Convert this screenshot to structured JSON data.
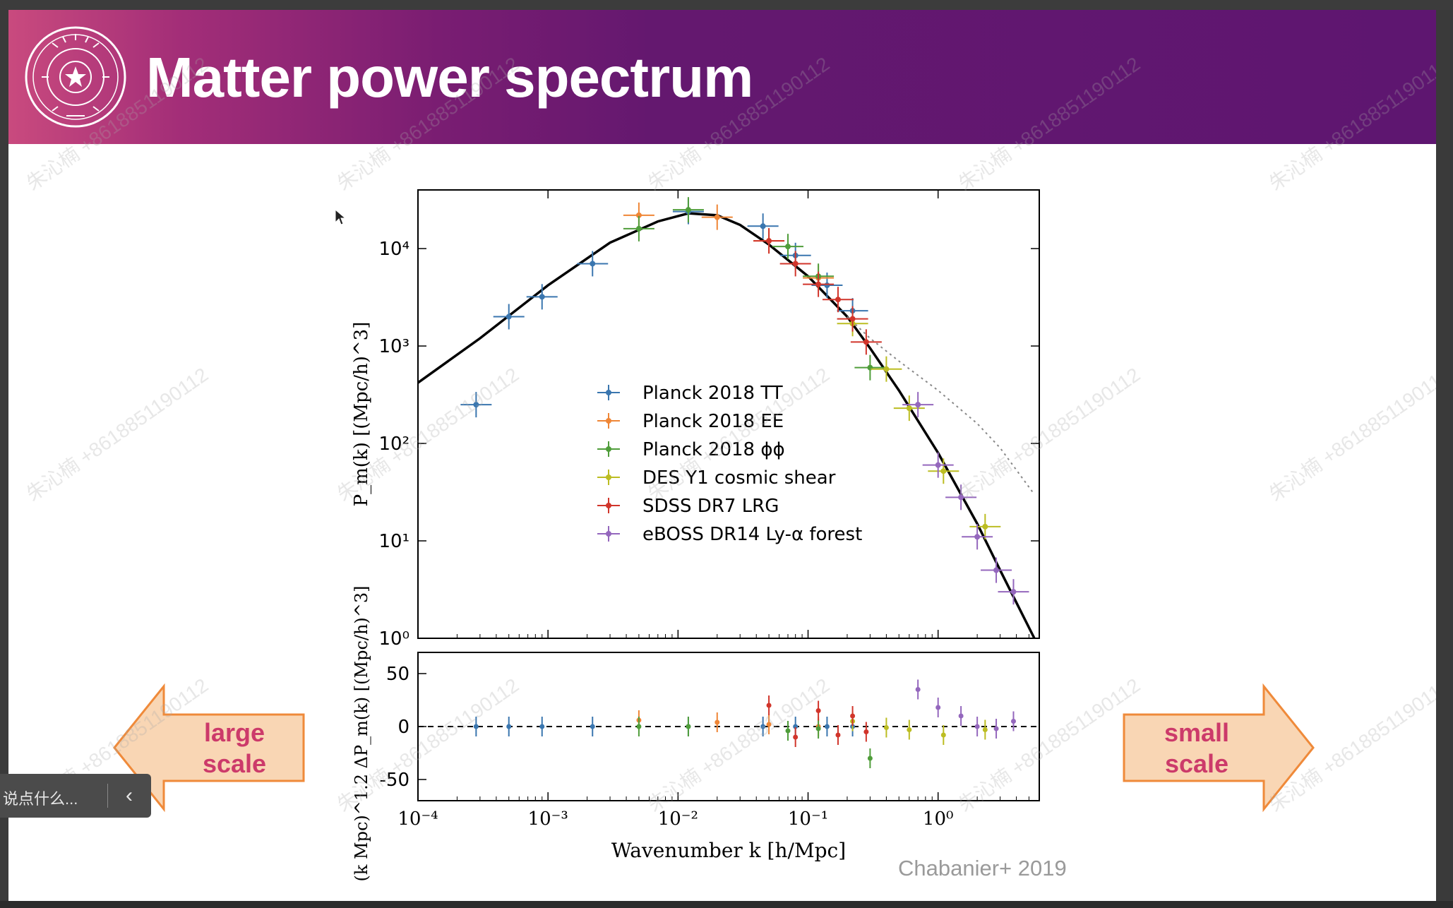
{
  "slide": {
    "title": "Matter power spectrum",
    "credit": "Chabanier+ 2019",
    "left_arrow": {
      "line1": "large",
      "line2": "scale"
    },
    "right_arrow": {
      "line1": "small",
      "line2": "scale"
    },
    "watermark_text": "朱沁楠 +8618851190112",
    "colors": {
      "header_start": "#c94a7e",
      "header_end": "#5e1670",
      "arrow_fill": "#f9d6b4",
      "arrow_stroke": "#ef8a3a",
      "arrow_text": "#cc3a6a"
    }
  },
  "comment_bar": {
    "placeholder": "说点什么...",
    "collapse_icon": "chevron-left-icon"
  },
  "chart_data": {
    "type": "scatter",
    "xlabel": "Wavenumber k [h/Mpc]",
    "ylabel_top": "P_m(k) [(Mpc/h)^3]",
    "ylabel_bottom": "(k Mpc)^1.2 ΔP_m(k) [(Mpc/h)^3]",
    "x_scale": "log",
    "xlim": [
      0.0001,
      6
    ],
    "top_panel": {
      "y_scale": "log",
      "ylim": [
        1,
        40000
      ],
      "yticks": [
        1,
        10,
        100,
        1000,
        10000
      ],
      "ytick_labels": [
        "10^0",
        "10^1",
        "10^2",
        "10^3",
        "10^4"
      ],
      "model_curve": {
        "x": [
          0.0001,
          0.0003,
          0.001,
          0.003,
          0.007,
          0.012,
          0.02,
          0.03,
          0.05,
          0.1,
          0.2,
          0.3,
          0.5,
          1,
          2,
          3,
          5.5
        ],
        "y": [
          420,
          1200,
          4200,
          11500,
          19000,
          23000,
          22000,
          17500,
          11000,
          5200,
          2000,
          950,
          350,
          80,
          15,
          5,
          1
        ]
      },
      "nonlinear_curve": {
        "x": [
          0.2,
          0.3,
          0.5,
          1,
          2,
          3,
          5.5
        ],
        "y": [
          2000,
          1200,
          700,
          350,
          160,
          90,
          30
        ]
      }
    },
    "bottom_panel": {
      "y_scale": "linear",
      "ylim": [
        -70,
        70
      ],
      "yticks": [
        -50,
        0,
        50
      ]
    },
    "xticks": [
      0.0001,
      0.001,
      0.01,
      0.1,
      1
    ],
    "xtick_labels": [
      "10^-4",
      "10^-3",
      "10^-2",
      "10^-1",
      "10^0"
    ],
    "legend_position": "lower-center",
    "series": [
      {
        "name": "Planck 2018 TT",
        "color": "#3a76af",
        "points": [
          {
            "x": 0.00028,
            "y": 250,
            "r": 0
          },
          {
            "x": 0.0005,
            "y": 2000,
            "r": 0
          },
          {
            "x": 0.0009,
            "y": 3200,
            "r": 0
          },
          {
            "x": 0.0022,
            "y": 7000,
            "r": 0
          },
          {
            "x": 0.012,
            "y": 24000,
            "r": 0
          },
          {
            "x": 0.045,
            "y": 17000,
            "r": 0
          },
          {
            "x": 0.08,
            "y": 8500,
            "r": 0
          },
          {
            "x": 0.14,
            "y": 4200,
            "r": 0
          },
          {
            "x": 0.22,
            "y": 2300,
            "r": 0
          }
        ]
      },
      {
        "name": "Planck 2018 EE",
        "color": "#ef8636",
        "points": [
          {
            "x": 0.005,
            "y": 22000,
            "r": 6
          },
          {
            "x": 0.02,
            "y": 21000,
            "r": 4
          },
          {
            "x": 0.05,
            "y": 12000,
            "r": 2
          },
          {
            "x": 0.12,
            "y": 5000,
            "r": 0
          }
        ]
      },
      {
        "name": "Planck 2018 ϕϕ",
        "color": "#4f9d3a",
        "points": [
          {
            "x": 0.005,
            "y": 16000,
            "r": 0
          },
          {
            "x": 0.012,
            "y": 25000,
            "r": 0
          },
          {
            "x": 0.07,
            "y": 10500,
            "r": -4
          },
          {
            "x": 0.12,
            "y": 5200,
            "r": -2
          },
          {
            "x": 0.3,
            "y": 600,
            "r": -30
          }
        ]
      },
      {
        "name": "DES Y1 cosmic shear",
        "color": "#bcbd22",
        "points": [
          {
            "x": 0.22,
            "y": 1700,
            "r": 5
          },
          {
            "x": 0.4,
            "y": 580,
            "r": -1
          },
          {
            "x": 0.6,
            "y": 230,
            "r": -3
          },
          {
            "x": 1.1,
            "y": 52,
            "r": -8
          },
          {
            "x": 2.3,
            "y": 14,
            "r": -3
          }
        ]
      },
      {
        "name": "SDSS DR7 LRG",
        "color": "#d1352b",
        "points": [
          {
            "x": 0.05,
            "y": 12000,
            "r": 20
          },
          {
            "x": 0.08,
            "y": 7000,
            "r": -10
          },
          {
            "x": 0.12,
            "y": 4300,
            "r": 15
          },
          {
            "x": 0.17,
            "y": 3000,
            "r": -8
          },
          {
            "x": 0.22,
            "y": 1900,
            "r": 10
          },
          {
            "x": 0.28,
            "y": 1100,
            "r": -5
          }
        ]
      },
      {
        "name": "eBOSS DR14 Ly-α forest",
        "color": "#9467bd",
        "points": [
          {
            "x": 0.7,
            "y": 250,
            "r": 35
          },
          {
            "x": 1.0,
            "y": 60,
            "r": 18
          },
          {
            "x": 1.5,
            "y": 28,
            "r": 10
          },
          {
            "x": 2.0,
            "y": 11,
            "r": 0
          },
          {
            "x": 2.8,
            "y": 5,
            "r": -2
          },
          {
            "x": 3.8,
            "y": 3,
            "r": 5
          }
        ]
      }
    ]
  }
}
